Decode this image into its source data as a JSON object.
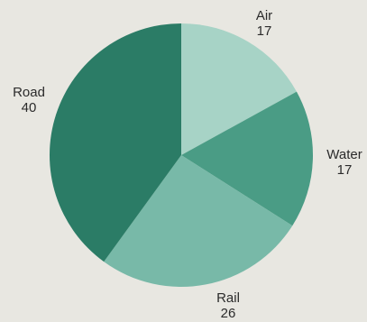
{
  "chart_data": {
    "type": "pie",
    "title": "",
    "slices": [
      {
        "label": "Air",
        "value": 17,
        "color": "#a7d3c6"
      },
      {
        "label": "Water",
        "value": 17,
        "color": "#4a9c85"
      },
      {
        "label": "Rail",
        "value": 26,
        "color": "#78b9a8"
      },
      {
        "label": "Road",
        "value": 40,
        "color": "#2b7c66"
      }
    ],
    "start_angle_deg": 0,
    "direction": "clockwise",
    "legend": "none",
    "value_labels": "outside"
  }
}
